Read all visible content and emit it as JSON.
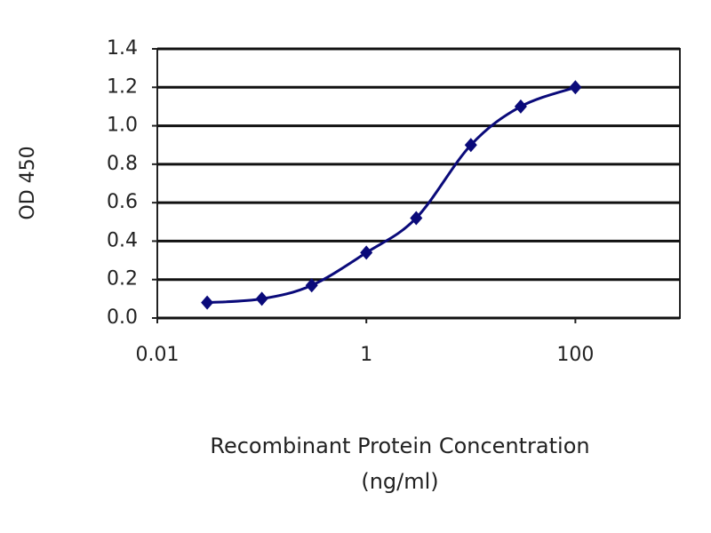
{
  "chart_data": {
    "type": "line",
    "x_label": [
      "Recombinant Protein Concentration",
      "(ng/ml)"
    ],
    "y_label": "OD 450",
    "x": [
      0.03,
      0.1,
      0.3,
      1,
      3,
      10,
      30,
      100
    ],
    "values": [
      0.08,
      0.1,
      0.17,
      0.34,
      0.52,
      0.9,
      1.1,
      1.2
    ],
    "color": "#0a0a7a",
    "xscale": "log",
    "xlim": [
      0.01,
      1000
    ],
    "xticks": [
      0.01,
      1,
      100
    ],
    "ylim": [
      0,
      1.4
    ],
    "yticks": [
      {
        "value": 0,
        "label": "0.0"
      },
      0.2,
      0.4,
      0.6,
      0.8,
      {
        "value": 1,
        "label": "1.0"
      },
      1.2,
      1.4
    ],
    "grid": true
  }
}
